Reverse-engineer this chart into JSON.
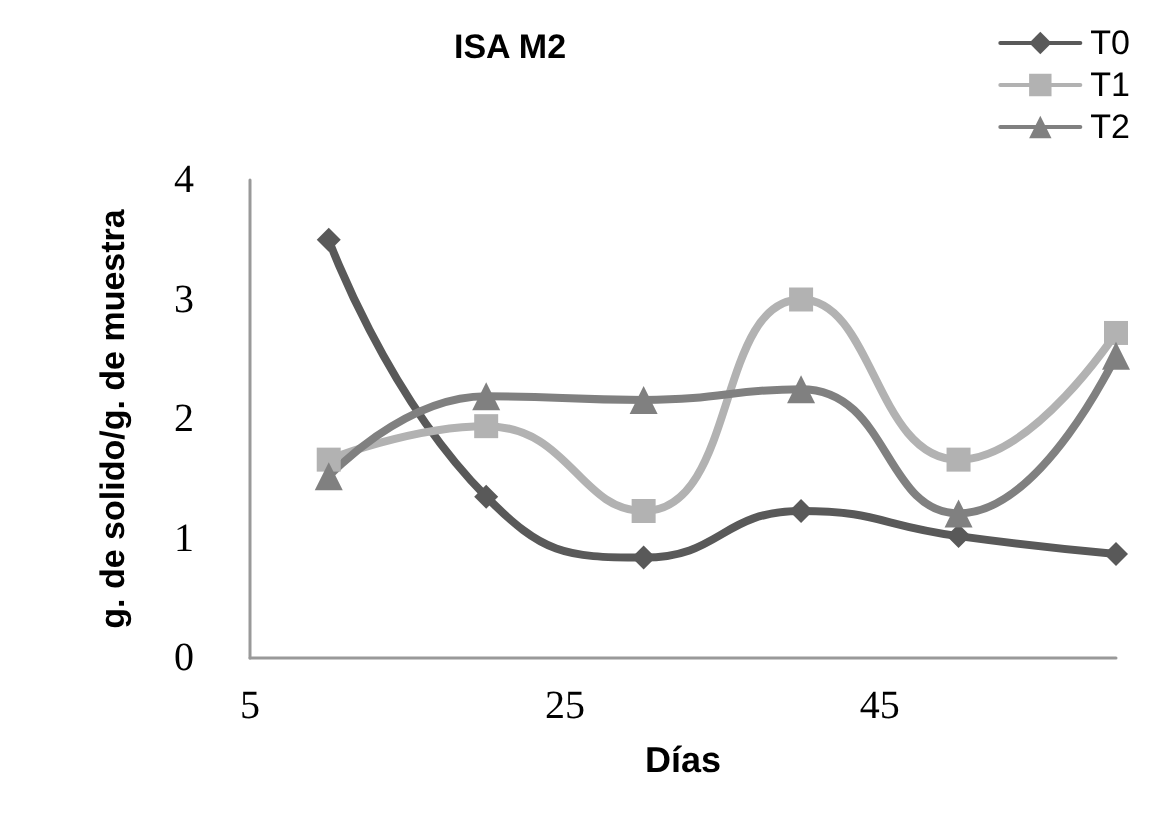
{
  "chart_data": {
    "type": "line",
    "title": "ISA M2",
    "xlabel": "Días",
    "ylabel": "g. de solido/g. de muestra",
    "x": [
      10,
      20,
      30,
      40,
      50,
      60
    ],
    "series": [
      {
        "name": "T0",
        "color": "#595959",
        "marker": "diamond",
        "values": [
          3.5,
          1.35,
          0.84,
          1.23,
          1.02,
          0.87
        ]
      },
      {
        "name": "T1",
        "color": "#b2b2b2",
        "marker": "square",
        "values": [
          1.66,
          1.94,
          1.23,
          3.0,
          1.66,
          2.72
        ]
      },
      {
        "name": "T2",
        "color": "#808080",
        "marker": "triangle",
        "values": [
          1.52,
          2.19,
          2.16,
          2.25,
          1.21,
          2.53
        ]
      }
    ],
    "xlim": [
      5,
      60
    ],
    "xticks": [
      5,
      25,
      45
    ],
    "ylim": [
      0,
      4
    ],
    "yticks": [
      0,
      1,
      2,
      3,
      4
    ],
    "grid": false,
    "legend": "top right",
    "line_style": "solid"
  }
}
